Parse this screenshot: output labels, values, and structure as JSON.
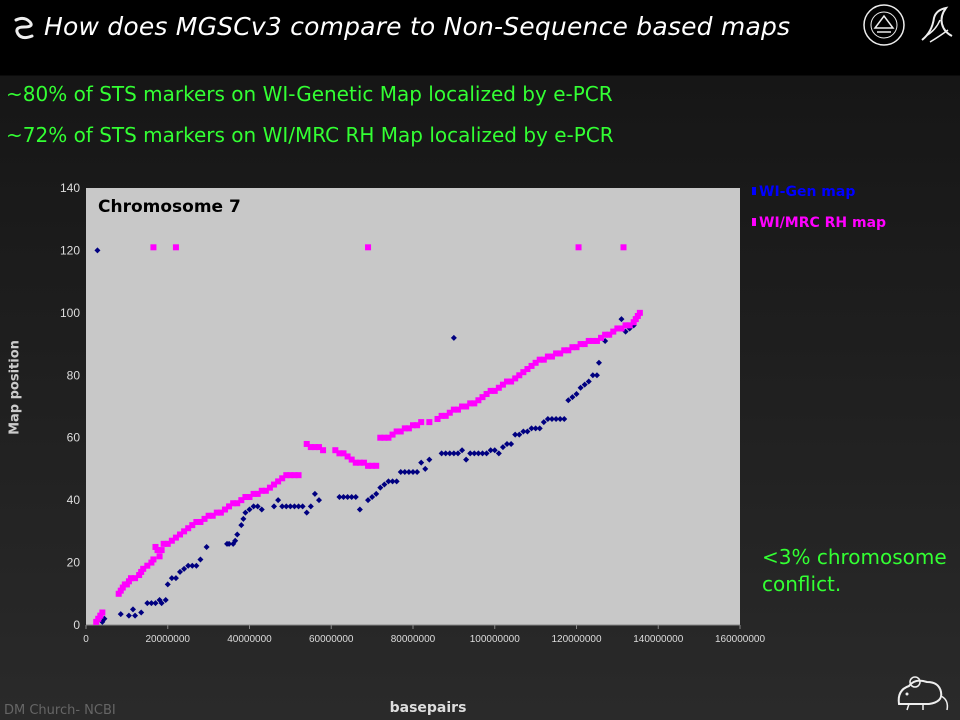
{
  "slide": {
    "title": "How does MGSCv3 compare to Non-Sequence based maps",
    "bullets": [
      "~80% of STS markers on WI-Genetic Map localized by e-PCR",
      "~72% of STS markers on WI/MRC RH Map localized by e-PCR"
    ],
    "note": "<3% chromosome conflict.",
    "footer": "DM Church- NCBI",
    "icons": [
      "squiggle-icon",
      "nih-seal-icon",
      "hhs-eagle-icon",
      "mouse-icon"
    ]
  },
  "colors": {
    "title": "#ffffff",
    "text": "#33ff33",
    "wi_gen": "#000080",
    "wi_mrc_rh": "#ff00ff",
    "plot_bg": "#c8c8c8"
  },
  "chart_data": {
    "type": "scatter",
    "title": "Chromosome 7",
    "xlabel": "basepairs",
    "ylabel": "Map position",
    "xlim": [
      0,
      160000000
    ],
    "ylim": [
      0,
      140
    ],
    "x_ticks": [
      "0",
      "20000000",
      "40000000",
      "60000000",
      "80000000",
      "100000000",
      "120000000",
      "140000000",
      "160000000"
    ],
    "y_ticks": [
      "0",
      "20",
      "40",
      "60",
      "80",
      "100",
      "120",
      "140"
    ],
    "grid": false,
    "legend": "right-top, outside",
    "series": [
      {
        "name": "WI-Gen map",
        "color": "#000080",
        "marker": "diamond",
        "points": [
          [
            2800000,
            120
          ],
          [
            4000000,
            1
          ],
          [
            4500000,
            2
          ],
          [
            8500000,
            3.5
          ],
          [
            10500000,
            3
          ],
          [
            11500000,
            5
          ],
          [
            12000000,
            3
          ],
          [
            13500000,
            4
          ],
          [
            15000000,
            7
          ],
          [
            16000000,
            7
          ],
          [
            17000000,
            7
          ],
          [
            18000000,
            8
          ],
          [
            18500000,
            7
          ],
          [
            19500000,
            8
          ],
          [
            20000000,
            13
          ],
          [
            21000000,
            15
          ],
          [
            22000000,
            15
          ],
          [
            23000000,
            17
          ],
          [
            24000000,
            18
          ],
          [
            25000000,
            19
          ],
          [
            26000000,
            19
          ],
          [
            27000000,
            19
          ],
          [
            28000000,
            21
          ],
          [
            29500000,
            25
          ],
          [
            34500000,
            26
          ],
          [
            35000000,
            26
          ],
          [
            36000000,
            26
          ],
          [
            36500000,
            27
          ],
          [
            37000000,
            29
          ],
          [
            38000000,
            32
          ],
          [
            38500000,
            34
          ],
          [
            39000000,
            36
          ],
          [
            40000000,
            37
          ],
          [
            41000000,
            38
          ],
          [
            42000000,
            38
          ],
          [
            43000000,
            37
          ],
          [
            46000000,
            38
          ],
          [
            47000000,
            40
          ],
          [
            48000000,
            38
          ],
          [
            49000000,
            38
          ],
          [
            50000000,
            38
          ],
          [
            51000000,
            38
          ],
          [
            52000000,
            38
          ],
          [
            53000000,
            38
          ],
          [
            54000000,
            36
          ],
          [
            55000000,
            38
          ],
          [
            56000000,
            42
          ],
          [
            57000000,
            40
          ],
          [
            62000000,
            41
          ],
          [
            63000000,
            41
          ],
          [
            64000000,
            41
          ],
          [
            65000000,
            41
          ],
          [
            66000000,
            41
          ],
          [
            67000000,
            37
          ],
          [
            69000000,
            40
          ],
          [
            70000000,
            41
          ],
          [
            71000000,
            42
          ],
          [
            72000000,
            44
          ],
          [
            73000000,
            45
          ],
          [
            74000000,
            46
          ],
          [
            75000000,
            46
          ],
          [
            76000000,
            46
          ],
          [
            77000000,
            49
          ],
          [
            78000000,
            49
          ],
          [
            79000000,
            49
          ],
          [
            80000000,
            49
          ],
          [
            81000000,
            49
          ],
          [
            82000000,
            52
          ],
          [
            83000000,
            50
          ],
          [
            84000000,
            53
          ],
          [
            87000000,
            55
          ],
          [
            88000000,
            55
          ],
          [
            89000000,
            55
          ],
          [
            90000000,
            55
          ],
          [
            90000000,
            92
          ],
          [
            91000000,
            55
          ],
          [
            92000000,
            56
          ],
          [
            93000000,
            53
          ],
          [
            94000000,
            55
          ],
          [
            95000000,
            55
          ],
          [
            96000000,
            55
          ],
          [
            97000000,
            55
          ],
          [
            98000000,
            55
          ],
          [
            99000000,
            56
          ],
          [
            100000000,
            56
          ],
          [
            101000000,
            55
          ],
          [
            102000000,
            57
          ],
          [
            103000000,
            58
          ],
          [
            104000000,
            58
          ],
          [
            105000000,
            61
          ],
          [
            106000000,
            61
          ],
          [
            107000000,
            62
          ],
          [
            108000000,
            62
          ],
          [
            109000000,
            63
          ],
          [
            110000000,
            63
          ],
          [
            111000000,
            63
          ],
          [
            112000000,
            65
          ],
          [
            113000000,
            66
          ],
          [
            114000000,
            66
          ],
          [
            115000000,
            66
          ],
          [
            116000000,
            66
          ],
          [
            117000000,
            66
          ],
          [
            118000000,
            72
          ],
          [
            119000000,
            73
          ],
          [
            120000000,
            74
          ],
          [
            121000000,
            76
          ],
          [
            122000000,
            77
          ],
          [
            123000000,
            78
          ],
          [
            124000000,
            80
          ],
          [
            125000000,
            80
          ],
          [
            125500000,
            84
          ],
          [
            127000000,
            91
          ],
          [
            128000000,
            93
          ],
          [
            129000000,
            94
          ],
          [
            130000000,
            95
          ],
          [
            131000000,
            98
          ],
          [
            132000000,
            94
          ],
          [
            133000000,
            95
          ],
          [
            134000000,
            96
          ],
          [
            135000000,
            99
          ]
        ]
      },
      {
        "name": "WI/MRC RH map",
        "color": "#ff00ff",
        "marker": "square",
        "points": [
          [
            2500000,
            1
          ],
          [
            3000000,
            2
          ],
          [
            3500000,
            3
          ],
          [
            4000000,
            4
          ],
          [
            8000000,
            10
          ],
          [
            8500000,
            11
          ],
          [
            9000000,
            12
          ],
          [
            9500000,
            13
          ],
          [
            10000000,
            13
          ],
          [
            10500000,
            14
          ],
          [
            11000000,
            15
          ],
          [
            12000000,
            15
          ],
          [
            13000000,
            16
          ],
          [
            13500000,
            17
          ],
          [
            14000000,
            18
          ],
          [
            15000000,
            19
          ],
          [
            16000000,
            20
          ],
          [
            16500000,
            21
          ],
          [
            17000000,
            25
          ],
          [
            17500000,
            24
          ],
          [
            18000000,
            22
          ],
          [
            18500000,
            24
          ],
          [
            19000000,
            26
          ],
          [
            20000000,
            26
          ],
          [
            21000000,
            27
          ],
          [
            22000000,
            28
          ],
          [
            23000000,
            29
          ],
          [
            24000000,
            30
          ],
          [
            25000000,
            31
          ],
          [
            26000000,
            32
          ],
          [
            27000000,
            33
          ],
          [
            28000000,
            33
          ],
          [
            29000000,
            34
          ],
          [
            30000000,
            35
          ],
          [
            31000000,
            35
          ],
          [
            32000000,
            36
          ],
          [
            33000000,
            36
          ],
          [
            34000000,
            37
          ],
          [
            35000000,
            38
          ],
          [
            36000000,
            39
          ],
          [
            37000000,
            39
          ],
          [
            38000000,
            40
          ],
          [
            39000000,
            41
          ],
          [
            40000000,
            41
          ],
          [
            41000000,
            42
          ],
          [
            42000000,
            42
          ],
          [
            43000000,
            43
          ],
          [
            44000000,
            43
          ],
          [
            45000000,
            44
          ],
          [
            46000000,
            45
          ],
          [
            47000000,
            46
          ],
          [
            48000000,
            47
          ],
          [
            49000000,
            48
          ],
          [
            50000000,
            48
          ],
          [
            51000000,
            48
          ],
          [
            52000000,
            48
          ],
          [
            54000000,
            58
          ],
          [
            55000000,
            57
          ],
          [
            56000000,
            57
          ],
          [
            57000000,
            57
          ],
          [
            58000000,
            56
          ],
          [
            61000000,
            56
          ],
          [
            62000000,
            55
          ],
          [
            63000000,
            55
          ],
          [
            64000000,
            54
          ],
          [
            65000000,
            53
          ],
          [
            66000000,
            52
          ],
          [
            67000000,
            52
          ],
          [
            68000000,
            52
          ],
          [
            69000000,
            51
          ],
          [
            70000000,
            51
          ],
          [
            71000000,
            51
          ],
          [
            72000000,
            60
          ],
          [
            73000000,
            60
          ],
          [
            74000000,
            60
          ],
          [
            75000000,
            61
          ],
          [
            76000000,
            62
          ],
          [
            77000000,
            62
          ],
          [
            78000000,
            63
          ],
          [
            79000000,
            63
          ],
          [
            80000000,
            64
          ],
          [
            81000000,
            64
          ],
          [
            82000000,
            65
          ],
          [
            84000000,
            65
          ],
          [
            86000000,
            66
          ],
          [
            87000000,
            67
          ],
          [
            88000000,
            67
          ],
          [
            89000000,
            68
          ],
          [
            90000000,
            69
          ],
          [
            91000000,
            69
          ],
          [
            92000000,
            70
          ],
          [
            93000000,
            70
          ],
          [
            94000000,
            71
          ],
          [
            95000000,
            71
          ],
          [
            96000000,
            72
          ],
          [
            97000000,
            73
          ],
          [
            98000000,
            74
          ],
          [
            99000000,
            75
          ],
          [
            100000000,
            75
          ],
          [
            101000000,
            76
          ],
          [
            102000000,
            77
          ],
          [
            103000000,
            78
          ],
          [
            104000000,
            78
          ],
          [
            105000000,
            79
          ],
          [
            106000000,
            80
          ],
          [
            107000000,
            81
          ],
          [
            108000000,
            82
          ],
          [
            109000000,
            83
          ],
          [
            110000000,
            84
          ],
          [
            111000000,
            85
          ],
          [
            112000000,
            85
          ],
          [
            113000000,
            86
          ],
          [
            114000000,
            86
          ],
          [
            115000000,
            87
          ],
          [
            116000000,
            87
          ],
          [
            117000000,
            88
          ],
          [
            118000000,
            88
          ],
          [
            119000000,
            89
          ],
          [
            120000000,
            89
          ],
          [
            121000000,
            90
          ],
          [
            122000000,
            90
          ],
          [
            123000000,
            91
          ],
          [
            124000000,
            91
          ],
          [
            125000000,
            91
          ],
          [
            126000000,
            92
          ],
          [
            127000000,
            93
          ],
          [
            128000000,
            93
          ],
          [
            129000000,
            94
          ],
          [
            130000000,
            95
          ],
          [
            131000000,
            95
          ],
          [
            132000000,
            96
          ],
          [
            133000000,
            96
          ],
          [
            134000000,
            97
          ],
          [
            134500000,
            98
          ],
          [
            135000000,
            99
          ],
          [
            135500000,
            100
          ],
          [
            16500000,
            121
          ],
          [
            22000000,
            121
          ],
          [
            69000000,
            121
          ],
          [
            120500000,
            121
          ],
          [
            131500000,
            121
          ]
        ]
      }
    ]
  }
}
